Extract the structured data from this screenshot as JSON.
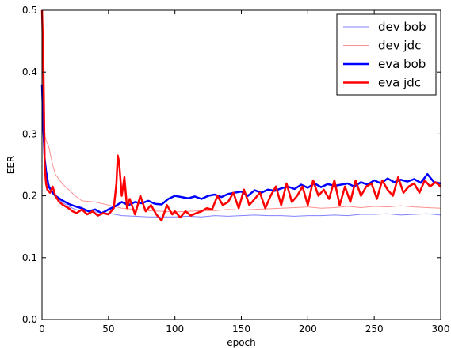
{
  "chart_data": {
    "type": "line",
    "xlabel": "epoch",
    "ylabel": "EER",
    "xlim": [
      0,
      300
    ],
    "ylim": [
      0.0,
      0.5
    ],
    "xticks": [
      "0",
      "50",
      "100",
      "150",
      "200",
      "250",
      "300"
    ],
    "yticks": [
      "0.0",
      "0.1",
      "0.2",
      "0.3",
      "0.4",
      "0.5"
    ],
    "grid": false,
    "legend_position": "top-right",
    "series": [
      {
        "name": "dev bob",
        "color": "#8080ff",
        "x": [
          0,
          1,
          2,
          3,
          5,
          8,
          10,
          15,
          20,
          25,
          30,
          40,
          50,
          60,
          70,
          80,
          90,
          100,
          110,
          120,
          130,
          140,
          150,
          160,
          170,
          180,
          190,
          200,
          210,
          220,
          230,
          240,
          250,
          260,
          270,
          280,
          290,
          300
        ],
        "y": [
          0.36,
          0.29,
          0.26,
          0.24,
          0.22,
          0.205,
          0.198,
          0.19,
          0.183,
          0.178,
          0.176,
          0.174,
          0.172,
          0.168,
          0.167,
          0.166,
          0.166,
          0.166,
          0.167,
          0.166,
          0.168,
          0.167,
          0.168,
          0.169,
          0.168,
          0.168,
          0.167,
          0.168,
          0.168,
          0.169,
          0.168,
          0.17,
          0.17,
          0.171,
          0.169,
          0.17,
          0.171,
          0.169
        ]
      },
      {
        "name": "dev jdc",
        "color": "#ff9090",
        "x": [
          0,
          1,
          2,
          3,
          5,
          8,
          10,
          15,
          20,
          25,
          30,
          40,
          50,
          60,
          70,
          80,
          90,
          100,
          110,
          120,
          130,
          140,
          150,
          160,
          170,
          180,
          190,
          200,
          210,
          220,
          230,
          240,
          250,
          260,
          270,
          280,
          290,
          300
        ],
        "y": [
          0.5,
          0.32,
          0.3,
          0.29,
          0.28,
          0.25,
          0.235,
          0.22,
          0.21,
          0.2,
          0.192,
          0.19,
          0.185,
          0.18,
          0.178,
          0.176,
          0.175,
          0.174,
          0.175,
          0.176,
          0.176,
          0.178,
          0.177,
          0.178,
          0.179,
          0.18,
          0.181,
          0.182,
          0.18,
          0.181,
          0.183,
          0.181,
          0.183,
          0.182,
          0.184,
          0.182,
          0.181,
          0.18
        ]
      },
      {
        "name": "eva bob",
        "color": "#0000ff",
        "x": [
          0,
          1,
          2,
          3,
          5,
          8,
          10,
          15,
          20,
          25,
          30,
          35,
          40,
          45,
          50,
          55,
          60,
          65,
          70,
          75,
          80,
          85,
          90,
          95,
          100,
          105,
          110,
          115,
          120,
          125,
          130,
          135,
          140,
          145,
          150,
          155,
          160,
          165,
          170,
          175,
          180,
          185,
          190,
          195,
          200,
          205,
          210,
          215,
          220,
          225,
          230,
          235,
          240,
          245,
          250,
          255,
          260,
          265,
          270,
          275,
          280,
          285,
          290,
          295,
          300
        ],
        "y": [
          0.38,
          0.31,
          0.26,
          0.24,
          0.215,
          0.205,
          0.2,
          0.193,
          0.187,
          0.183,
          0.18,
          0.175,
          0.178,
          0.172,
          0.178,
          0.183,
          0.19,
          0.185,
          0.19,
          0.188,
          0.192,
          0.187,
          0.186,
          0.195,
          0.2,
          0.198,
          0.196,
          0.199,
          0.195,
          0.2,
          0.202,
          0.198,
          0.203,
          0.205,
          0.207,
          0.2,
          0.209,
          0.205,
          0.21,
          0.208,
          0.212,
          0.215,
          0.211,
          0.218,
          0.213,
          0.22,
          0.214,
          0.219,
          0.216,
          0.218,
          0.22,
          0.215,
          0.222,
          0.218,
          0.225,
          0.22,
          0.228,
          0.222,
          0.226,
          0.223,
          0.227,
          0.221,
          0.235,
          0.222,
          0.22
        ]
      },
      {
        "name": "eva jdc",
        "color": "#ff0000",
        "x": [
          0,
          1,
          2,
          3,
          4,
          6,
          8,
          10,
          13,
          16,
          20,
          23,
          26,
          30,
          34,
          38,
          42,
          46,
          50,
          54,
          56,
          57,
          58,
          60,
          62,
          64,
          66,
          70,
          74,
          78,
          82,
          86,
          90,
          94,
          98,
          100,
          104,
          108,
          112,
          116,
          120,
          124,
          128,
          132,
          136,
          140,
          144,
          148,
          152,
          156,
          160,
          164,
          168,
          172,
          176,
          180,
          184,
          188,
          192,
          196,
          200,
          204,
          208,
          212,
          216,
          220,
          224,
          228,
          232,
          236,
          240,
          244,
          248,
          252,
          256,
          260,
          264,
          268,
          272,
          276,
          280,
          284,
          288,
          292,
          296,
          300
        ],
        "y": [
          0.5,
          0.42,
          0.25,
          0.22,
          0.21,
          0.205,
          0.215,
          0.2,
          0.19,
          0.185,
          0.18,
          0.175,
          0.172,
          0.178,
          0.17,
          0.175,
          0.168,
          0.172,
          0.17,
          0.18,
          0.22,
          0.265,
          0.255,
          0.2,
          0.23,
          0.18,
          0.195,
          0.17,
          0.2,
          0.175,
          0.185,
          0.17,
          0.16,
          0.185,
          0.17,
          0.175,
          0.165,
          0.175,
          0.168,
          0.172,
          0.175,
          0.18,
          0.178,
          0.2,
          0.185,
          0.19,
          0.205,
          0.18,
          0.21,
          0.185,
          0.195,
          0.205,
          0.18,
          0.2,
          0.215,
          0.185,
          0.22,
          0.19,
          0.2,
          0.215,
          0.185,
          0.225,
          0.2,
          0.21,
          0.195,
          0.225,
          0.185,
          0.215,
          0.19,
          0.225,
          0.2,
          0.215,
          0.22,
          0.195,
          0.225,
          0.21,
          0.2,
          0.23,
          0.205,
          0.215,
          0.22,
          0.205,
          0.225,
          0.215,
          0.222,
          0.215
        ]
      }
    ]
  }
}
